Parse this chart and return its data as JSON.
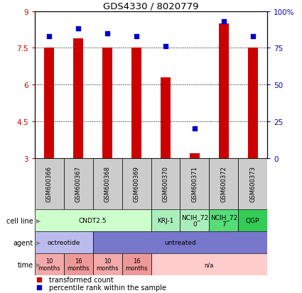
{
  "title": "GDS4330 / 8020779",
  "samples": [
    "GSM600366",
    "GSM600367",
    "GSM600368",
    "GSM600369",
    "GSM600370",
    "GSM600371",
    "GSM600372",
    "GSM600373"
  ],
  "bar_values": [
    7.5,
    7.9,
    7.5,
    7.5,
    6.3,
    3.2,
    8.5,
    7.5
  ],
  "percentile_values": [
    83,
    88,
    85,
    83,
    76,
    20,
    93,
    83
  ],
  "ylim_left": [
    3,
    9
  ],
  "ylim_right": [
    0,
    100
  ],
  "yticks_left": [
    3,
    4.5,
    6,
    7.5,
    9
  ],
  "yticks_right": [
    0,
    25,
    50,
    75,
    100
  ],
  "ytick_labels_left": [
    "3",
    "4.5",
    "6",
    "7.5",
    "9"
  ],
  "ytick_labels_right": [
    "0",
    "25",
    "50",
    "75",
    "100%"
  ],
  "bar_color": "#cc0000",
  "dot_color": "#0000cc",
  "bar_bottom": 3,
  "sample_box_color": "#cccccc",
  "cell_line_groups": [
    {
      "label": "CNDT2.5",
      "start": 0,
      "end": 4,
      "color": "#ccffcc"
    },
    {
      "label": "KRJ-1",
      "start": 4,
      "end": 5,
      "color": "#aaeebb"
    },
    {
      "label": "NCIH_72\n0",
      "start": 5,
      "end": 6,
      "color": "#aaeebb"
    },
    {
      "label": "NCIH_72\n7",
      "start": 6,
      "end": 7,
      "color": "#55dd77"
    },
    {
      "label": "QGP",
      "start": 7,
      "end": 8,
      "color": "#33cc55"
    }
  ],
  "agent_groups": [
    {
      "label": "octreotide",
      "start": 0,
      "end": 2,
      "color": "#bbbbee"
    },
    {
      "label": "untreated",
      "start": 2,
      "end": 8,
      "color": "#7777cc"
    }
  ],
  "time_groups": [
    {
      "label": "10\nmonths",
      "start": 0,
      "end": 1,
      "color": "#f4aaaa"
    },
    {
      "label": "16\nmonths",
      "start": 1,
      "end": 2,
      "color": "#ee9999"
    },
    {
      "label": "10\nmonths",
      "start": 2,
      "end": 3,
      "color": "#f4aaaa"
    },
    {
      "label": "16\nmonths",
      "start": 3,
      "end": 4,
      "color": "#ee9999"
    },
    {
      "label": "n/a",
      "start": 4,
      "end": 8,
      "color": "#ffcccc"
    }
  ],
  "legend_bar_label": "transformed count",
  "legend_dot_label": "percentile rank within the sample",
  "tick_color_left": "#cc0000",
  "tick_color_right": "#0000cc"
}
